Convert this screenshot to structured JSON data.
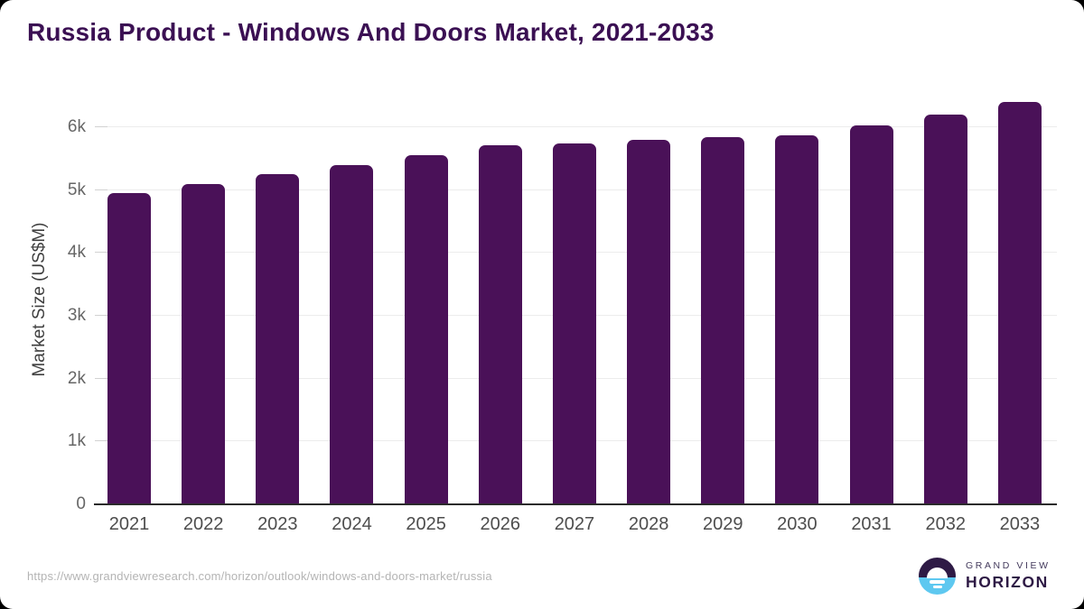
{
  "title": "Russia Product - Windows And Doors Market, 2021-2033",
  "y_axis": {
    "label": "Market Size (US$M)",
    "tick_values": [
      0,
      1000,
      2000,
      3000,
      4000,
      5000,
      6000
    ],
    "tick_labels": [
      "0",
      "1k",
      "2k",
      "3k",
      "4k",
      "5k",
      "6k"
    ]
  },
  "chart_data": {
    "type": "bar",
    "title": "Russia Product - Windows And Doors Market, 2021-2033",
    "categories": [
      "2021",
      "2022",
      "2023",
      "2024",
      "2025",
      "2026",
      "2027",
      "2028",
      "2029",
      "2030",
      "2031",
      "2032",
      "2033"
    ],
    "values": [
      4950,
      5100,
      5250,
      5400,
      5560,
      5710,
      5740,
      5790,
      5840,
      5870,
      6020,
      6200,
      6400
    ],
    "xlabel": "",
    "ylabel": "Market Size (US$M)",
    "ylim": [
      0,
      6500
    ],
    "grid": true,
    "legend": "none",
    "bar_color": "#4a1158"
  },
  "colors": {
    "title": "#3b1053",
    "bar": "#4a1158",
    "gridline": "#ececec",
    "axis_line": "#2b2b2b",
    "axis_text": "#4d4d4d",
    "logo_purple": "#2e1a45",
    "logo_blue": "#5ec8f0"
  },
  "footer": {
    "source_url": "https://www.grandviewresearch.com/horizon/outlook/windows-and-doors-market/russia",
    "brand_line1": "GRAND VIEW",
    "brand_line2": "HORIZON"
  }
}
